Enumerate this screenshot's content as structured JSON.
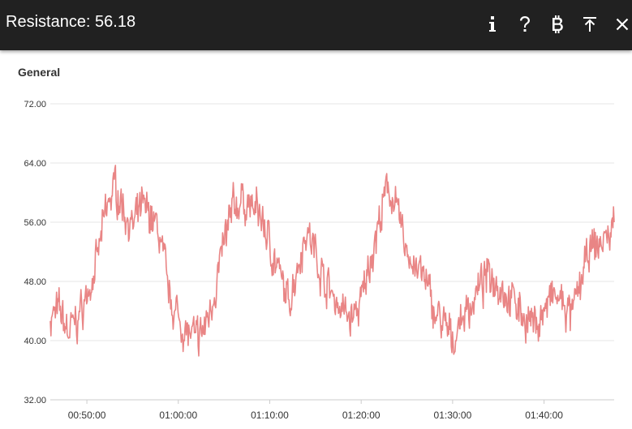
{
  "header": {
    "title": "Resistance: 56.18",
    "background": "#212121",
    "icons": [
      "info-icon",
      "help-icon",
      "bitcoin-icon",
      "scroll-to-top-icon",
      "close-icon"
    ]
  },
  "section": {
    "title": "General"
  },
  "chart_data": {
    "type": "line",
    "title": "",
    "xlabel": "",
    "ylabel": "",
    "ylim": [
      32,
      72
    ],
    "xlim": [
      "00:46:00",
      "01:47:40"
    ],
    "grid": true,
    "y_ticks": [
      "72.00",
      "64.00",
      "56.00",
      "48.00",
      "40.00",
      "32.00"
    ],
    "x_ticks": [
      "00:50:00",
      "01:00:00",
      "01:10:00",
      "01:20:00",
      "01:30:00",
      "01:40:00"
    ],
    "line_color": "#e98585",
    "series": [
      {
        "x": [
          "00:46:00",
          "00:47:00",
          "00:48:00",
          "00:49:00",
          "00:50:00",
          "00:51:00",
          "00:52:00",
          "00:53:00",
          "00:54:00",
          "00:55:00",
          "00:56:00",
          "00:57:00",
          "00:58:00",
          "00:59:00",
          "01:00:00",
          "01:01:00",
          "01:02:00",
          "01:03:00",
          "01:04:00",
          "01:05:00",
          "01:06:00",
          "01:07:00",
          "01:08:00",
          "01:09:00",
          "01:10:00",
          "01:11:00",
          "01:12:00",
          "01:13:00",
          "01:14:00",
          "01:15:00",
          "01:16:00",
          "01:17:00",
          "01:18:00",
          "01:19:00",
          "01:20:00",
          "01:21:00",
          "01:22:00",
          "01:23:00",
          "01:24:00",
          "01:25:00",
          "01:26:00",
          "01:27:00",
          "01:28:00",
          "01:29:00",
          "01:30:00",
          "01:31:00",
          "01:32:00",
          "01:33:00",
          "01:34:00",
          "01:35:00",
          "01:36:00",
          "01:37:00",
          "01:38:00",
          "01:39:00",
          "01:40:00",
          "01:41:00",
          "01:42:00",
          "01:43:00",
          "01:44:00",
          "01:45:00",
          "01:46:00",
          "01:47:00",
          "01:47:40"
        ],
        "values": [
          43,
          44,
          41,
          43,
          46,
          50,
          57,
          61,
          58,
          55,
          58,
          57,
          54,
          46,
          43,
          41,
          40,
          42,
          47,
          53,
          58,
          59,
          58,
          57,
          53,
          49,
          45,
          50,
          55,
          52,
          48,
          46,
          44,
          43,
          45,
          51,
          56,
          61,
          57,
          52,
          50,
          48,
          44,
          42,
          40,
          43,
          45,
          47,
          49,
          48,
          46,
          45,
          43,
          42,
          44,
          46,
          45,
          43,
          48,
          52,
          53,
          54,
          56
        ]
      }
    ]
  }
}
